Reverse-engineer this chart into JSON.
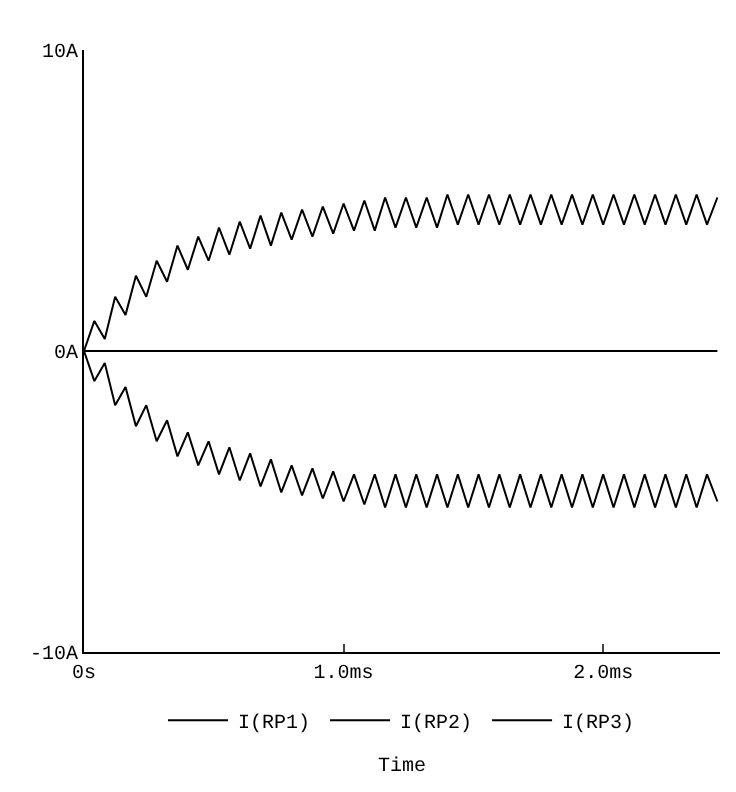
{
  "chart_data": {
    "type": "line",
    "xlabel": "Time",
    "xlim": [
      0,
      2.45
    ],
    "xticks": [
      {
        "value": 0,
        "label": "0s"
      },
      {
        "value": 1,
        "label": "1.0ms"
      },
      {
        "value": 2,
        "label": "2.0ms"
      }
    ],
    "ylim": [
      -10,
      10
    ],
    "yticks": [
      {
        "value": -10,
        "label": "-10A"
      },
      {
        "value": 0,
        "label": "0A"
      },
      {
        "value": 10,
        "label": "10A"
      }
    ],
    "grid": false,
    "legend": "bottom",
    "line_style": "solid",
    "series": [
      {
        "name": "I(RP1)",
        "color": "#000000",
        "x": [
          0,
          0.04,
          0.08,
          0.12,
          0.16,
          0.2,
          0.24,
          0.28,
          0.32,
          0.36,
          0.4,
          0.44,
          0.48,
          0.52,
          0.56,
          0.6,
          0.64,
          0.68,
          0.72,
          0.76,
          0.8,
          0.84,
          0.88,
          0.92,
          0.96,
          1,
          1.04,
          1.08,
          1.12,
          1.16,
          1.2,
          1.24,
          1.28,
          1.32,
          1.36,
          1.4,
          1.44,
          1.48,
          1.52,
          1.56,
          1.6,
          1.64,
          1.68,
          1.72,
          1.76,
          1.8,
          1.84,
          1.88,
          1.92,
          1.96,
          2,
          2.04,
          2.08,
          2.12,
          2.16,
          2.2,
          2.24,
          2.28,
          2.32,
          2.36,
          2.4,
          2.44
        ],
        "values": [
          0,
          1.0,
          0.4,
          1.8,
          1.2,
          2.5,
          1.8,
          3.0,
          2.3,
          3.5,
          2.7,
          3.8,
          3.0,
          4.1,
          3.2,
          4.3,
          3.4,
          4.5,
          3.5,
          4.6,
          3.7,
          4.7,
          3.8,
          4.8,
          3.9,
          4.9,
          4.0,
          5.0,
          4.0,
          5.1,
          4.1,
          5.1,
          4.1,
          5.1,
          4.1,
          5.2,
          4.2,
          5.2,
          4.2,
          5.2,
          4.2,
          5.2,
          4.2,
          5.2,
          4.2,
          5.2,
          4.2,
          5.2,
          4.2,
          5.2,
          4.2,
          5.2,
          4.2,
          5.2,
          4.2,
          5.2,
          4.2,
          5.2,
          4.2,
          5.2,
          4.2,
          5.1
        ]
      },
      {
        "name": "I(RP2)",
        "color": "#000000",
        "x": [
          0,
          0.04,
          0.08,
          0.12,
          0.16,
          0.2,
          0.24,
          0.28,
          0.32,
          0.36,
          0.4,
          0.44,
          0.48,
          0.52,
          0.56,
          0.6,
          0.64,
          0.68,
          0.72,
          0.76,
          0.8,
          0.84,
          0.88,
          0.92,
          0.96,
          1,
          1.04,
          1.08,
          1.12,
          1.16,
          1.2,
          1.24,
          1.28,
          1.32,
          1.36,
          1.4,
          1.44,
          1.48,
          1.52,
          1.56,
          1.6,
          1.64,
          1.68,
          1.72,
          1.76,
          1.8,
          1.84,
          1.88,
          1.92,
          1.96,
          2,
          2.04,
          2.08,
          2.12,
          2.16,
          2.2,
          2.24,
          2.28,
          2.32,
          2.36,
          2.4,
          2.44
        ],
        "values": [
          0,
          -1.0,
          -0.4,
          -1.8,
          -1.2,
          -2.5,
          -1.8,
          -3.0,
          -2.3,
          -3.5,
          -2.7,
          -3.8,
          -3.0,
          -4.1,
          -3.2,
          -4.3,
          -3.4,
          -4.5,
          -3.6,
          -4.7,
          -3.8,
          -4.8,
          -3.9,
          -4.9,
          -4.0,
          -5.0,
          -4.1,
          -5.1,
          -4.1,
          -5.2,
          -4.1,
          -5.2,
          -4.1,
          -5.2,
          -4.1,
          -5.2,
          -4.1,
          -5.2,
          -4.1,
          -5.2,
          -4.1,
          -5.2,
          -4.1,
          -5.2,
          -4.1,
          -5.2,
          -4.1,
          -5.2,
          -4.1,
          -5.2,
          -4.1,
          -5.2,
          -4.1,
          -5.2,
          -4.1,
          -5.2,
          -4.1,
          -5.2,
          -4.1,
          -5.2,
          -4.1,
          -5.0
        ]
      },
      {
        "name": "I(RP3)",
        "color": "#000000",
        "x": [
          0,
          2.44
        ],
        "values": [
          0,
          0
        ]
      }
    ]
  }
}
